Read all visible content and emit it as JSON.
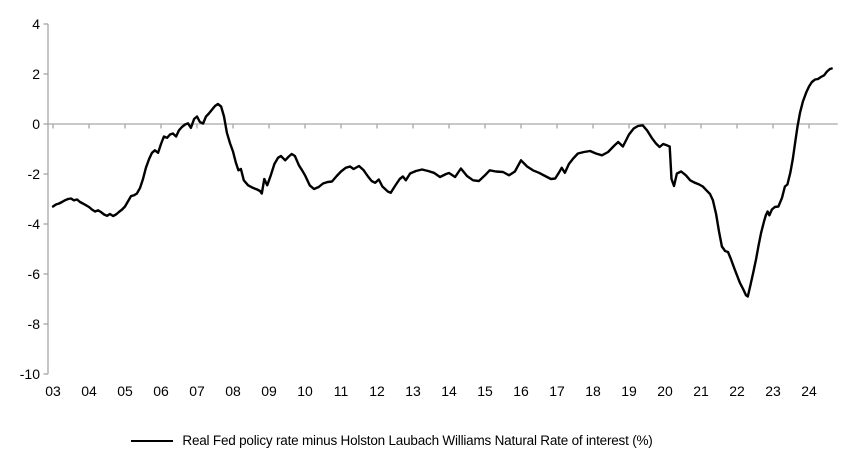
{
  "legend": {
    "label": "Real Fed policy rate minus Holston Laubach Williams Natural Rate of interest (%)"
  },
  "colors": {
    "series": "#000000",
    "axis": "#a6a6a6",
    "text": "#000000",
    "background": "#ffffff"
  },
  "chart_data": {
    "type": "line",
    "title": "",
    "xlabel": "",
    "ylabel": "",
    "grid": false,
    "zero_line": true,
    "legend_position": "bottom",
    "ylim": [
      -10,
      4
    ],
    "xlim": [
      2003.0,
      2024.8
    ],
    "y_ticks": [
      4,
      2,
      0,
      -2,
      -4,
      -6,
      -8,
      -10
    ],
    "y_tick_labels": [
      "4",
      "2",
      "0",
      "-2",
      "-4",
      "-6",
      "-8",
      "-10"
    ],
    "x_tick_years": [
      2003,
      2004,
      2005,
      2006,
      2007,
      2008,
      2009,
      2010,
      2011,
      2012,
      2013,
      2014,
      2015,
      2016,
      2017,
      2018,
      2019,
      2020,
      2021,
      2022,
      2023,
      2024
    ],
    "x_tick_labels": [
      "03",
      "04",
      "05",
      "06",
      "07",
      "08",
      "09",
      "10",
      "11",
      "12",
      "13",
      "14",
      "15",
      "16",
      "17",
      "18",
      "19",
      "20",
      "21",
      "22",
      "23",
      "24"
    ],
    "series": [
      {
        "name": "Real Fed policy rate minus Holston Laubach Williams Natural Rate of interest (%)",
        "points": [
          [
            2003.0,
            -3.3
          ],
          [
            2003.08,
            -3.22
          ],
          [
            2003.17,
            -3.18
          ],
          [
            2003.25,
            -3.12
          ],
          [
            2003.33,
            -3.05
          ],
          [
            2003.42,
            -3.0
          ],
          [
            2003.5,
            -2.98
          ],
          [
            2003.58,
            -3.05
          ],
          [
            2003.67,
            -3.02
          ],
          [
            2003.75,
            -3.12
          ],
          [
            2003.83,
            -3.18
          ],
          [
            2003.92,
            -3.25
          ],
          [
            2004.0,
            -3.32
          ],
          [
            2004.08,
            -3.42
          ],
          [
            2004.17,
            -3.5
          ],
          [
            2004.25,
            -3.45
          ],
          [
            2004.33,
            -3.52
          ],
          [
            2004.42,
            -3.62
          ],
          [
            2004.5,
            -3.67
          ],
          [
            2004.58,
            -3.6
          ],
          [
            2004.67,
            -3.68
          ],
          [
            2004.75,
            -3.62
          ],
          [
            2004.83,
            -3.52
          ],
          [
            2004.92,
            -3.42
          ],
          [
            2005.0,
            -3.3
          ],
          [
            2005.08,
            -3.1
          ],
          [
            2005.17,
            -2.88
          ],
          [
            2005.25,
            -2.85
          ],
          [
            2005.33,
            -2.78
          ],
          [
            2005.42,
            -2.55
          ],
          [
            2005.5,
            -2.2
          ],
          [
            2005.58,
            -1.75
          ],
          [
            2005.67,
            -1.4
          ],
          [
            2005.75,
            -1.15
          ],
          [
            2005.83,
            -1.05
          ],
          [
            2005.92,
            -1.15
          ],
          [
            2006.0,
            -0.8
          ],
          [
            2006.08,
            -0.5
          ],
          [
            2006.17,
            -0.55
          ],
          [
            2006.25,
            -0.42
          ],
          [
            2006.33,
            -0.38
          ],
          [
            2006.42,
            -0.5
          ],
          [
            2006.5,
            -0.25
          ],
          [
            2006.58,
            -0.12
          ],
          [
            2006.67,
            -0.02
          ],
          [
            2006.75,
            0.03
          ],
          [
            2006.83,
            -0.15
          ],
          [
            2006.92,
            0.2
          ],
          [
            2007.0,
            0.3
          ],
          [
            2007.08,
            0.08
          ],
          [
            2007.17,
            0.02
          ],
          [
            2007.25,
            0.3
          ],
          [
            2007.33,
            0.42
          ],
          [
            2007.42,
            0.58
          ],
          [
            2007.5,
            0.72
          ],
          [
            2007.58,
            0.8
          ],
          [
            2007.67,
            0.7
          ],
          [
            2007.75,
            0.3
          ],
          [
            2007.83,
            -0.35
          ],
          [
            2007.92,
            -0.78
          ],
          [
            2008.0,
            -1.1
          ],
          [
            2008.08,
            -1.55
          ],
          [
            2008.15,
            -1.85
          ],
          [
            2008.22,
            -1.8
          ],
          [
            2008.3,
            -2.25
          ],
          [
            2008.42,
            -2.45
          ],
          [
            2008.55,
            -2.55
          ],
          [
            2008.67,
            -2.62
          ],
          [
            2008.75,
            -2.68
          ],
          [
            2008.8,
            -2.78
          ],
          [
            2008.87,
            -2.2
          ],
          [
            2008.95,
            -2.45
          ],
          [
            2009.05,
            -2.05
          ],
          [
            2009.15,
            -1.6
          ],
          [
            2009.25,
            -1.35
          ],
          [
            2009.33,
            -1.28
          ],
          [
            2009.45,
            -1.45
          ],
          [
            2009.55,
            -1.3
          ],
          [
            2009.63,
            -1.2
          ],
          [
            2009.72,
            -1.28
          ],
          [
            2009.83,
            -1.65
          ],
          [
            2009.92,
            -1.85
          ],
          [
            2010.0,
            -2.05
          ],
          [
            2010.13,
            -2.45
          ],
          [
            2010.25,
            -2.6
          ],
          [
            2010.38,
            -2.52
          ],
          [
            2010.5,
            -2.38
          ],
          [
            2010.63,
            -2.32
          ],
          [
            2010.75,
            -2.3
          ],
          [
            2010.88,
            -2.08
          ],
          [
            2011.0,
            -1.9
          ],
          [
            2011.13,
            -1.75
          ],
          [
            2011.25,
            -1.7
          ],
          [
            2011.35,
            -1.8
          ],
          [
            2011.5,
            -1.68
          ],
          [
            2011.63,
            -1.85
          ],
          [
            2011.75,
            -2.1
          ],
          [
            2011.85,
            -2.28
          ],
          [
            2011.95,
            -2.35
          ],
          [
            2012.05,
            -2.22
          ],
          [
            2012.15,
            -2.5
          ],
          [
            2012.3,
            -2.7
          ],
          [
            2012.38,
            -2.75
          ],
          [
            2012.5,
            -2.48
          ],
          [
            2012.63,
            -2.2
          ],
          [
            2012.72,
            -2.1
          ],
          [
            2012.8,
            -2.25
          ],
          [
            2012.92,
            -1.98
          ],
          [
            2013.08,
            -1.88
          ],
          [
            2013.25,
            -1.82
          ],
          [
            2013.42,
            -1.88
          ],
          [
            2013.58,
            -1.95
          ],
          [
            2013.75,
            -2.12
          ],
          [
            2013.92,
            -2.0
          ],
          [
            2014.0,
            -1.96
          ],
          [
            2014.17,
            -2.12
          ],
          [
            2014.33,
            -1.78
          ],
          [
            2014.5,
            -2.08
          ],
          [
            2014.67,
            -2.25
          ],
          [
            2014.83,
            -2.28
          ],
          [
            2015.0,
            -2.05
          ],
          [
            2015.13,
            -1.85
          ],
          [
            2015.3,
            -1.9
          ],
          [
            2015.5,
            -1.92
          ],
          [
            2015.67,
            -2.05
          ],
          [
            2015.83,
            -1.9
          ],
          [
            2016.0,
            -1.45
          ],
          [
            2016.17,
            -1.7
          ],
          [
            2016.33,
            -1.85
          ],
          [
            2016.5,
            -1.95
          ],
          [
            2016.67,
            -2.08
          ],
          [
            2016.83,
            -2.2
          ],
          [
            2016.95,
            -2.18
          ],
          [
            2017.05,
            -1.95
          ],
          [
            2017.13,
            -1.75
          ],
          [
            2017.22,
            -1.95
          ],
          [
            2017.33,
            -1.6
          ],
          [
            2017.45,
            -1.38
          ],
          [
            2017.58,
            -1.18
          ],
          [
            2017.75,
            -1.12
          ],
          [
            2017.92,
            -1.08
          ],
          [
            2018.08,
            -1.18
          ],
          [
            2018.25,
            -1.25
          ],
          [
            2018.42,
            -1.12
          ],
          [
            2018.58,
            -0.88
          ],
          [
            2018.7,
            -0.72
          ],
          [
            2018.83,
            -0.9
          ],
          [
            2019.0,
            -0.42
          ],
          [
            2019.13,
            -0.18
          ],
          [
            2019.25,
            -0.08
          ],
          [
            2019.38,
            -0.05
          ],
          [
            2019.5,
            -0.25
          ],
          [
            2019.63,
            -0.55
          ],
          [
            2019.75,
            -0.78
          ],
          [
            2019.85,
            -0.92
          ],
          [
            2019.95,
            -0.8
          ],
          [
            2020.05,
            -0.85
          ],
          [
            2020.13,
            -0.9
          ],
          [
            2020.18,
            -2.2
          ],
          [
            2020.25,
            -2.48
          ],
          [
            2020.33,
            -1.98
          ],
          [
            2020.45,
            -1.9
          ],
          [
            2020.58,
            -2.05
          ],
          [
            2020.7,
            -2.25
          ],
          [
            2020.83,
            -2.35
          ],
          [
            2020.95,
            -2.42
          ],
          [
            2021.05,
            -2.5
          ],
          [
            2021.15,
            -2.65
          ],
          [
            2021.25,
            -2.8
          ],
          [
            2021.33,
            -3.05
          ],
          [
            2021.42,
            -3.6
          ],
          [
            2021.5,
            -4.3
          ],
          [
            2021.58,
            -4.9
          ],
          [
            2021.67,
            -5.08
          ],
          [
            2021.75,
            -5.12
          ],
          [
            2021.83,
            -5.4
          ],
          [
            2021.92,
            -5.75
          ],
          [
            2022.0,
            -6.05
          ],
          [
            2022.08,
            -6.35
          ],
          [
            2022.17,
            -6.6
          ],
          [
            2022.25,
            -6.85
          ],
          [
            2022.3,
            -6.9
          ],
          [
            2022.38,
            -6.4
          ],
          [
            2022.45,
            -5.95
          ],
          [
            2022.53,
            -5.4
          ],
          [
            2022.6,
            -4.85
          ],
          [
            2022.67,
            -4.35
          ],
          [
            2022.75,
            -3.9
          ],
          [
            2022.8,
            -3.65
          ],
          [
            2022.85,
            -3.5
          ],
          [
            2022.9,
            -3.65
          ],
          [
            2022.97,
            -3.42
          ],
          [
            2023.05,
            -3.32
          ],
          [
            2023.15,
            -3.3
          ],
          [
            2023.25,
            -2.95
          ],
          [
            2023.33,
            -2.5
          ],
          [
            2023.4,
            -2.42
          ],
          [
            2023.48,
            -1.95
          ],
          [
            2023.55,
            -1.4
          ],
          [
            2023.62,
            -0.7
          ],
          [
            2023.68,
            -0.1
          ],
          [
            2023.75,
            0.45
          ],
          [
            2023.83,
            0.9
          ],
          [
            2023.92,
            1.25
          ],
          [
            2024.0,
            1.5
          ],
          [
            2024.08,
            1.68
          ],
          [
            2024.17,
            1.78
          ],
          [
            2024.25,
            1.8
          ],
          [
            2024.33,
            1.88
          ],
          [
            2024.42,
            1.95
          ],
          [
            2024.5,
            2.1
          ],
          [
            2024.58,
            2.2
          ],
          [
            2024.63,
            2.22
          ]
        ]
      }
    ]
  }
}
